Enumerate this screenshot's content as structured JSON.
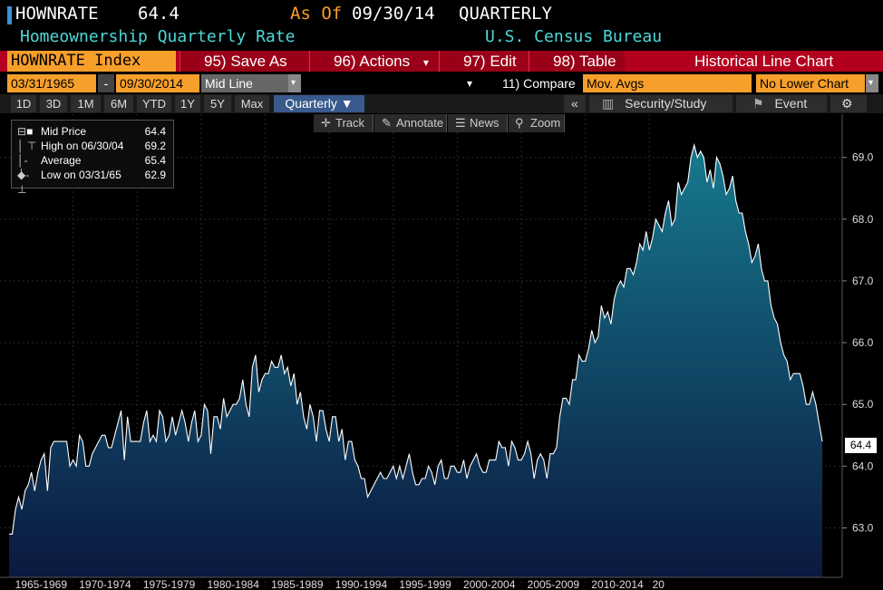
{
  "header": {
    "ticker": "HOWNRATE",
    "last_value": "64.4",
    "as_of_label": "As Of",
    "as_of_date": "09/30/14",
    "frequency": "QUARTERLY",
    "description": "Homeownership Quarterly Rate",
    "source": "U.S. Census Bureau"
  },
  "toolbar": {
    "security": "HOWNRATE Index",
    "save_as_num": "95)",
    "save_as": "Save As",
    "actions_num": "96)",
    "actions": "Actions",
    "edit_num": "97)",
    "edit": "Edit",
    "table_num": "98)",
    "table": "Table",
    "title": "Historical Line Chart"
  },
  "daterow": {
    "start_date": "03/31/1965",
    "separator": "-",
    "end_date": "09/30/2014",
    "line_type": "Mid Line",
    "compare_num": "11)",
    "compare": "Compare",
    "compare_value": "Mov. Avgs",
    "lower_chart": "No Lower Chart"
  },
  "periods": [
    "1D",
    "3D",
    "1M",
    "6M",
    "YTD",
    "1Y",
    "5Y",
    "Max"
  ],
  "period_select": "Quarterly ▼",
  "right_buttons": {
    "collapse": "«",
    "security_study": "Security/Study",
    "event": "Event",
    "settings_icon": "gear-icon"
  },
  "chart_tools": [
    "Track",
    "Annotate",
    "News",
    "Zoom"
  ],
  "legend": [
    {
      "label": "Mid Price",
      "value": "64.4"
    },
    {
      "label": "High on 06/30/04",
      "value": "69.2"
    },
    {
      "label": "Average",
      "value": "65.4"
    },
    {
      "label": "Low on 03/31/65",
      "value": "62.9"
    }
  ],
  "chart_data": {
    "type": "area",
    "title": "",
    "x_tick_labels": [
      "1965-1969",
      "1970-1974",
      "1975-1979",
      "1980-1984",
      "1985-1989",
      "1990-1994",
      "1995-1999",
      "2000-2004",
      "2005-2009",
      "2010-2014",
      "20"
    ],
    "y_ticks": [
      63.0,
      64.0,
      65.0,
      66.0,
      67.0,
      68.0,
      69.0
    ],
    "ylim": [
      62.2,
      69.7
    ],
    "x_start": "1965Q1",
    "x_end": "2014Q3",
    "last_label": "64.4",
    "colors": {
      "line": "#ffffff",
      "fill_top": "#167a8e",
      "fill_bottom": "#0b1840",
      "grid": "#2a2a2a"
    },
    "series": [
      {
        "values": [
          62.9,
          62.9,
          63.3,
          63.5,
          63.3,
          63.6,
          63.7,
          63.9,
          63.6,
          63.9,
          64.1,
          64.2,
          63.6,
          64.3,
          64.4,
          64.4,
          64.4,
          64.4,
          64.4,
          64.0,
          64.1,
          64.0,
          64.5,
          64.4,
          64.0,
          64.0,
          64.2,
          64.3,
          64.4,
          64.5,
          64.5,
          64.3,
          64.3,
          64.5,
          64.7,
          64.9,
          64.1,
          64.8,
          64.4,
          64.4,
          64.4,
          64.4,
          64.7,
          64.9,
          64.4,
          64.5,
          64.4,
          64.9,
          64.8,
          64.4,
          64.5,
          64.8,
          64.5,
          64.7,
          64.9,
          64.7,
          64.4,
          64.7,
          64.9,
          64.4,
          64.5,
          65.0,
          64.9,
          64.2,
          64.8,
          64.8,
          64.6,
          65.1,
          64.8,
          64.9,
          65.0,
          65.0,
          65.1,
          65.4,
          65.0,
          64.8,
          65.6,
          65.8,
          65.2,
          65.4,
          65.5,
          65.5,
          65.7,
          65.6,
          65.6,
          65.8,
          65.5,
          65.6,
          65.3,
          65.5,
          65.0,
          65.2,
          64.8,
          64.6,
          65.0,
          64.8,
          64.4,
          64.9,
          64.9,
          64.6,
          64.4,
          64.8,
          64.8,
          64.4,
          64.6,
          64.1,
          64.4,
          64.4,
          64.1,
          64.0,
          63.8,
          63.8,
          63.5,
          63.6,
          63.7,
          63.8,
          63.9,
          63.8,
          63.8,
          63.9,
          64.0,
          63.8,
          64.0,
          63.8,
          64.0,
          64.2,
          63.9,
          63.7,
          63.7,
          63.8,
          63.8,
          64.0,
          63.9,
          63.7,
          64.0,
          64.1,
          63.8,
          63.8,
          64.0,
          64.0,
          63.9,
          63.9,
          64.1,
          63.8,
          64.0,
          64.1,
          64.2,
          64.0,
          63.9,
          63.9,
          64.1,
          64.1,
          64.1,
          64.4,
          64.3,
          64.3,
          64.0,
          64.4,
          64.3,
          64.1,
          64.1,
          64.2,
          64.4,
          64.2,
          63.8,
          64.1,
          64.2,
          64.1,
          63.8,
          64.2,
          64.2,
          64.3,
          64.8,
          65.1,
          65.1,
          65.0,
          65.4,
          65.4,
          65.8,
          65.7,
          65.7,
          65.9,
          66.2,
          66.0,
          66.1,
          66.6,
          66.4,
          66.5,
          66.3,
          66.7,
          66.9,
          67.0,
          66.9,
          67.2,
          67.2,
          67.1,
          67.3,
          67.6,
          67.5,
          67.8,
          67.5,
          67.7,
          68.0,
          67.9,
          67.8,
          68.1,
          68.3,
          67.9,
          68.0,
          68.6,
          68.4,
          68.5,
          68.6,
          69.0,
          69.2,
          69.0,
          69.1,
          69.0,
          68.6,
          68.8,
          68.5,
          69.0,
          68.9,
          68.7,
          68.4,
          68.5,
          68.7,
          68.3,
          68.1,
          68.1,
          67.8,
          67.6,
          67.3,
          67.4,
          67.6,
          67.2,
          67.0,
          67.0,
          66.6,
          66.4,
          66.3,
          66.0,
          65.8,
          65.7,
          65.4,
          65.5,
          65.5,
          65.5,
          65.3,
          65.0,
          65.0,
          65.2,
          65.0,
          64.7,
          64.4
        ]
      }
    ]
  }
}
